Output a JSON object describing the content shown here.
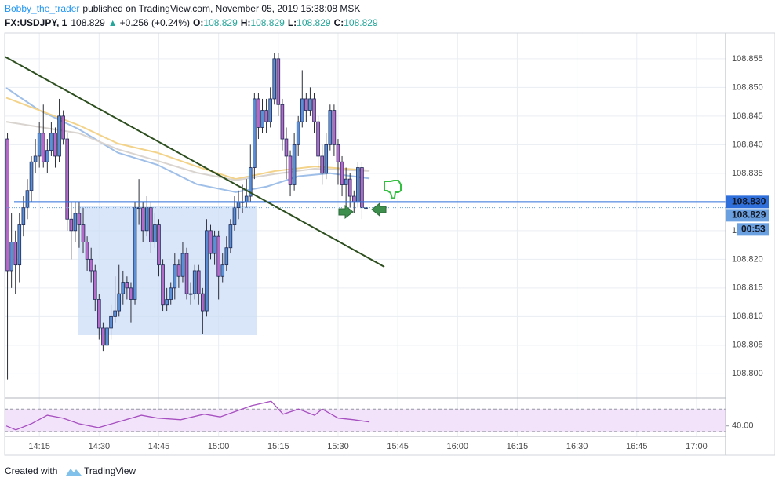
{
  "header": {
    "author": "Bobby_the_trader",
    "published": "published on TradingView.com, November 05, 2019 15:38:08 MSK",
    "symbol": "FX:USDJPY, 1",
    "last": "108.829",
    "arrow": "▲",
    "change": "+0.256 (+0.24%)",
    "ohlc": [
      {
        "key": "O:",
        "value": "108.829"
      },
      {
        "key": "H:",
        "value": "108.829"
      },
      {
        "key": "L:",
        "value": "108.829"
      },
      {
        "key": "C:",
        "value": "108.829"
      }
    ]
  },
  "chart_data": {
    "type": "candlestick",
    "xlim": [
      846.3,
      1027.3
    ],
    "ylim": [
      108.7958,
      108.8595
    ],
    "grid": true,
    "xticks": [
      {
        "value": 855,
        "label": "14:15"
      },
      {
        "value": 870,
        "label": "14:30"
      },
      {
        "value": 885,
        "label": "14:45"
      },
      {
        "value": 900,
        "label": "15:00"
      },
      {
        "value": 915,
        "label": "15:15"
      },
      {
        "value": 930,
        "label": "15:30"
      },
      {
        "value": 945,
        "label": "15:45"
      },
      {
        "value": 960,
        "label": "16:00"
      },
      {
        "value": 975,
        "label": "16:15"
      },
      {
        "value": 990,
        "label": "16:30"
      },
      {
        "value": 1005,
        "label": "16:45"
      },
      {
        "value": 1020,
        "label": "17:00"
      }
    ],
    "yticks": [
      {
        "value": 108.855,
        "label": "108.855"
      },
      {
        "value": 108.85,
        "label": "108.850"
      },
      {
        "value": 108.845,
        "label": "108.845"
      },
      {
        "value": 108.84,
        "label": "108.840"
      },
      {
        "value": 108.835,
        "label": "108.835"
      },
      {
        "value": 108.83,
        "label": "108.830"
      },
      {
        "value": 108.825,
        "label": "108.825"
      },
      {
        "value": 108.82,
        "label": "108.820"
      },
      {
        "value": 108.815,
        "label": "108.815"
      },
      {
        "value": 108.81,
        "label": "108.810"
      },
      {
        "value": 108.805,
        "label": "108.805"
      },
      {
        "value": 108.8,
        "label": "108.800"
      }
    ],
    "candles": {
      "up_color": "#5b8fd6",
      "down_color": "#b569c9",
      "x": [
        847,
        848,
        849,
        850,
        851,
        852,
        853,
        854,
        855,
        856,
        857,
        858,
        859,
        860,
        861,
        862,
        863,
        864,
        865,
        866,
        867,
        868,
        869,
        870,
        871,
        872,
        873,
        874,
        875,
        876,
        877,
        878,
        879,
        880,
        881,
        882,
        883,
        884,
        885,
        886,
        887,
        888,
        889,
        890,
        891,
        892,
        893,
        894,
        895,
        896,
        897,
        898,
        899,
        900,
        901,
        902,
        903,
        904,
        905,
        906,
        907,
        908,
        909,
        910,
        911,
        912,
        913,
        914,
        915,
        916,
        917,
        918,
        919,
        920,
        921,
        922,
        923,
        924,
        925,
        926,
        927,
        928,
        929,
        930,
        931,
        932,
        933,
        934,
        935,
        936,
        937
      ],
      "open": [
        108.841,
        108.818,
        108.823,
        108.819,
        108.826,
        108.829,
        108.832,
        108.837,
        108.838,
        108.842,
        108.837,
        108.839,
        108.842,
        108.838,
        108.845,
        108.841,
        108.827,
        108.825,
        108.828,
        108.826,
        108.823,
        108.82,
        108.818,
        108.813,
        108.808,
        108.805,
        108.808,
        108.81,
        108.811,
        108.814,
        108.816,
        108.815,
        108.813,
        108.829,
        108.829,
        108.825,
        108.829,
        108.823,
        108.826,
        108.819,
        108.812,
        108.813,
        108.815,
        108.819,
        108.817,
        108.821,
        108.814,
        108.814,
        108.818,
        108.814,
        108.811,
        108.825,
        108.821,
        108.824,
        108.817,
        108.819,
        108.822,
        108.826,
        108.829,
        108.83,
        108.83,
        108.831,
        108.836,
        108.848,
        108.843,
        108.846,
        108.844,
        108.848,
        108.855,
        108.847,
        108.841,
        108.838,
        108.833,
        108.84,
        108.844,
        108.848,
        108.846,
        108.848,
        108.844,
        108.838,
        108.835,
        108.84,
        108.846,
        108.84,
        108.837,
        108.833,
        108.834,
        108.831,
        108.83,
        108.836,
        108.829
      ],
      "high": [
        108.842,
        108.828,
        108.825,
        108.828,
        108.831,
        108.834,
        108.838,
        108.841,
        108.844,
        108.847,
        108.841,
        108.844,
        108.843,
        108.848,
        108.846,
        108.842,
        108.83,
        108.83,
        108.83,
        108.829,
        108.824,
        108.822,
        108.819,
        108.814,
        108.809,
        108.81,
        108.812,
        108.817,
        108.819,
        108.818,
        108.817,
        108.816,
        108.83,
        108.834,
        108.83,
        108.831,
        108.83,
        108.828,
        108.827,
        108.82,
        108.815,
        108.816,
        108.821,
        108.82,
        108.823,
        108.822,
        108.816,
        108.819,
        108.819,
        108.815,
        108.827,
        108.826,
        108.825,
        108.825,
        108.821,
        108.824,
        108.827,
        108.831,
        108.832,
        108.833,
        108.834,
        108.84,
        108.849,
        108.849,
        108.848,
        108.848,
        108.85,
        108.856,
        108.856,
        108.848,
        108.843,
        108.839,
        108.842,
        108.845,
        108.853,
        108.849,
        108.85,
        108.849,
        108.845,
        108.84,
        108.842,
        108.847,
        108.847,
        108.841,
        108.838,
        108.836,
        108.835,
        108.832,
        108.837,
        108.837,
        108.83
      ],
      "low": [
        108.799,
        108.815,
        108.814,
        108.816,
        108.824,
        108.827,
        108.83,
        108.835,
        108.836,
        108.836,
        108.835,
        108.838,
        108.836,
        108.837,
        108.84,
        108.825,
        108.82,
        108.823,
        108.822,
        108.821,
        108.818,
        108.816,
        108.811,
        108.806,
        108.804,
        108.804,
        108.806,
        108.809,
        108.81,
        108.812,
        108.813,
        108.809,
        108.812,
        108.826,
        108.823,
        108.824,
        108.821,
        108.822,
        108.817,
        108.811,
        108.811,
        108.812,
        108.813,
        108.815,
        108.816,
        108.813,
        108.812,
        108.813,
        108.812,
        108.807,
        108.81,
        108.82,
        108.819,
        108.813,
        108.816,
        108.818,
        108.821,
        108.825,
        108.827,
        108.828,
        108.829,
        108.83,
        108.834,
        108.841,
        108.842,
        108.842,
        108.843,
        108.847,
        108.845,
        108.839,
        108.834,
        108.831,
        108.832,
        108.838,
        108.843,
        108.844,
        108.845,
        108.842,
        108.836,
        108.833,
        108.834,
        108.839,
        108.838,
        108.833,
        108.831,
        108.829,
        108.829,
        108.828,
        108.829,
        108.827,
        108.828
      ],
      "close": [
        108.818,
        108.823,
        108.819,
        108.826,
        108.829,
        108.832,
        108.837,
        108.838,
        108.842,
        108.837,
        108.839,
        108.842,
        108.838,
        108.845,
        108.841,
        108.827,
        108.825,
        108.828,
        108.826,
        108.823,
        108.82,
        108.818,
        108.813,
        108.808,
        108.805,
        108.808,
        108.81,
        108.811,
        108.814,
        108.816,
        108.815,
        108.813,
        108.829,
        108.829,
        108.825,
        108.829,
        108.823,
        108.826,
        108.819,
        108.812,
        108.813,
        108.815,
        108.819,
        108.817,
        108.821,
        108.814,
        108.814,
        108.818,
        108.814,
        108.811,
        108.825,
        108.821,
        108.824,
        108.817,
        108.819,
        108.822,
        108.826,
        108.829,
        108.83,
        108.83,
        108.831,
        108.836,
        108.848,
        108.843,
        108.846,
        108.844,
        108.848,
        108.855,
        108.847,
        108.841,
        108.838,
        108.833,
        108.84,
        108.844,
        108.848,
        108.846,
        108.848,
        108.844,
        108.838,
        108.835,
        108.84,
        108.846,
        108.84,
        108.837,
        108.833,
        108.834,
        108.831,
        108.83,
        108.836,
        108.829,
        108.829
      ]
    },
    "lines": [
      {
        "color": "#9fbfe8",
        "x": [
          846.7,
          855,
          864.9,
          874.7,
          884.6,
          894.5,
          904.3,
          912.2,
          920.1,
          928,
          937.9
        ],
        "values": [
          108.8499,
          108.846,
          108.8427,
          108.8386,
          108.8365,
          108.8331,
          108.8317,
          108.8327,
          108.8345,
          108.835,
          108.8341
        ]
      },
      {
        "color": "#f3d38a",
        "x": [
          846.7,
          864.9,
          874.7,
          884.6,
          894.5,
          904.3,
          914.2,
          924.1,
          937.9
        ],
        "values": [
          108.8482,
          108.8434,
          108.8402,
          108.8386,
          108.8362,
          108.834,
          108.8354,
          108.8362,
          108.8355
        ]
      },
      {
        "color": "#d9d4cf",
        "x": [
          846.7,
          864.9,
          874.7,
          884.6,
          894.5,
          904.3,
          914.2,
          924.1,
          937.9
        ],
        "values": [
          108.844,
          108.842,
          108.8392,
          108.8372,
          108.8351,
          108.8338,
          108.8349,
          108.8358,
          108.8354
        ]
      }
    ],
    "hline": {
      "value": 108.83,
      "label": "108.830",
      "color": "#2f6fdb"
    },
    "last_price": {
      "value": 108.829,
      "label": "108.829",
      "color": "#6aa0e0"
    },
    "countdown": "00:53",
    "rsi": {
      "color": "#a64fc0",
      "ylim": [
        22.9,
        87
      ],
      "bands": [
        30,
        70
      ],
      "yticks": [
        {
          "value": 40,
          "label": "40.00"
        }
      ],
      "x": [
        846.7,
        849.1,
        853,
        857,
        860.9,
        864.9,
        869.8,
        874.7,
        880.6,
        884.6,
        890.5,
        896.4,
        900.4,
        904.3,
        908.3,
        913.2,
        916.2,
        920.1,
        924.1,
        926,
        930,
        933.9,
        937.9
      ],
      "values": [
        40,
        33,
        44,
        59,
        54,
        44,
        37,
        47,
        59,
        54,
        51,
        61,
        56,
        66,
        76,
        84,
        61,
        70,
        59,
        70,
        54,
        51,
        47
      ]
    }
  },
  "footer": {
    "created": "Created with",
    "brand": "TradingView"
  }
}
